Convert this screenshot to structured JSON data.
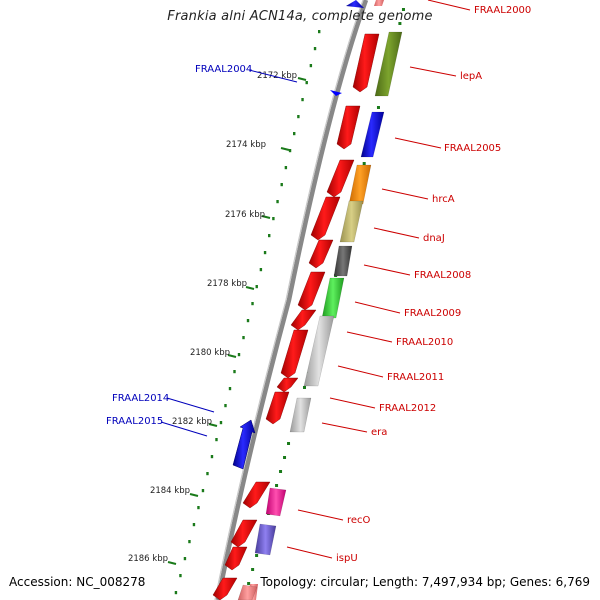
{
  "title": "Frankia alni ACN14a, complete genome",
  "accession_text": "Accession: NC_008278",
  "topology_text": "Topology: circular; Length: 7,497,934 bp; Genes: 6,769",
  "kbp_ticks": [
    "2172 kbp",
    "2174 kbp",
    "2176 kbp",
    "2178 kbp",
    "2180 kbp",
    "2182 kbp",
    "2184 kbp",
    "2186 kbp"
  ],
  "gene_labels_right": [
    "FRAAL2000",
    "lepA",
    "FRAAL2005",
    "hrcA",
    "dnaJ",
    "FRAAL2008",
    "FRAAL2009",
    "FRAAL2010",
    "FRAAL2011",
    "FRAAL2012",
    "era",
    "recO",
    "ispU"
  ],
  "gene_labels_left": [
    "FRAAL2004",
    "FRAAL2014",
    "FRAAL2015"
  ],
  "colors": {
    "forward_cds": "#ff0000",
    "reverse_cds": "#0000ff",
    "backbone": "#888888",
    "tick_green": "#006400",
    "label_red": "#cc0000",
    "label_blue": "#0000bb",
    "lepA": "#6b8e23",
    "FRAAL2005": "#0000ff",
    "hrcA": "#ff8c00",
    "dnaJ": "#bdb76b",
    "FRAAL2008": "#555555",
    "FRAAL2009": "#32cd32",
    "FRAAL2010": "#bbbbbb",
    "FRAAL2012": "#bbbbbb",
    "recO": "#ff1493",
    "ispU": "#6a5acd"
  }
}
